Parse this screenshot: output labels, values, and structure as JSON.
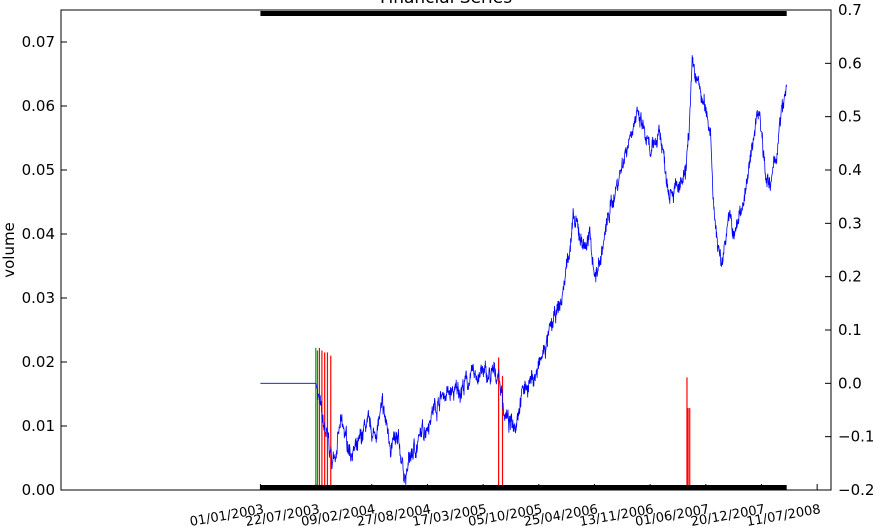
{
  "chart_data": {
    "type": "line",
    "title": "Financial Series",
    "ylabel_left": "volume",
    "ylabel_right": "",
    "left_axis": {
      "ylim": [
        0.0,
        0.075
      ],
      "ticks": [
        "0.00",
        "0.01",
        "0.02",
        "0.03",
        "0.04",
        "0.05",
        "0.06",
        "0.07"
      ]
    },
    "right_axis": {
      "ylim": [
        -0.2,
        0.7
      ],
      "ticks": [
        "−0.2",
        "−0.1",
        "0.0",
        "0.1",
        "0.2",
        "0.3",
        "0.4",
        "0.5",
        "0.6",
        "0.7"
      ]
    },
    "x_tick_labels": [
      "01/01/2003",
      "22/07/2003",
      "09/02/2004",
      "27/08/2004",
      "17/03/2005",
      "05/10/2005",
      "25/04/2006",
      "13/11/2006",
      "01/06/2007",
      "20/12/2007",
      "11/07/2008"
    ],
    "x_range_days": [
      -720,
      2060
    ],
    "series": [
      {
        "color": "#0000ff",
        "axis": "right",
        "anchors": [
          [
            0,
            0.0
          ],
          [
            200,
            0.0
          ],
          [
            210,
            -0.02
          ],
          [
            225,
            -0.08
          ],
          [
            240,
            -0.1
          ],
          [
            260,
            -0.15
          ],
          [
            290,
            -0.08
          ],
          [
            320,
            -0.12
          ],
          [
            350,
            -0.13
          ],
          [
            380,
            -0.08
          ],
          [
            410,
            -0.1
          ],
          [
            440,
            -0.05
          ],
          [
            470,
            -0.11
          ],
          [
            500,
            -0.12
          ],
          [
            525,
            -0.18
          ],
          [
            540,
            -0.14
          ],
          [
            580,
            -0.1
          ],
          [
            620,
            -0.05
          ],
          [
            660,
            -0.02
          ],
          [
            700,
            -0.02
          ],
          [
            740,
            0.0
          ],
          [
            790,
            0.02
          ],
          [
            830,
            0.01
          ],
          [
            860,
            0.02
          ],
          [
            880,
            -0.05
          ],
          [
            900,
            -0.08
          ],
          [
            920,
            -0.07
          ],
          [
            940,
            -0.02
          ],
          [
            965,
            0.0
          ],
          [
            1000,
            0.02
          ],
          [
            1050,
            0.1
          ],
          [
            1090,
            0.16
          ],
          [
            1110,
            0.24
          ],
          [
            1130,
            0.3
          ],
          [
            1170,
            0.26
          ],
          [
            1190,
            0.27
          ],
          [
            1210,
            0.2
          ],
          [
            1230,
            0.24
          ],
          [
            1260,
            0.32
          ],
          [
            1290,
            0.38
          ],
          [
            1320,
            0.44
          ],
          [
            1350,
            0.5
          ],
          [
            1380,
            0.48
          ],
          [
            1410,
            0.42
          ],
          [
            1440,
            0.48
          ],
          [
            1470,
            0.38
          ],
          [
            1510,
            0.36
          ],
          [
            1535,
            0.38
          ],
          [
            1550,
            0.5
          ],
          [
            1560,
            0.59
          ],
          [
            1580,
            0.56
          ],
          [
            1600,
            0.52
          ],
          [
            1625,
            0.48
          ],
          [
            1640,
            0.3
          ],
          [
            1665,
            0.22
          ],
          [
            1690,
            0.32
          ],
          [
            1710,
            0.27
          ],
          [
            1740,
            0.34
          ],
          [
            1760,
            0.38
          ],
          [
            1790,
            0.5
          ],
          [
            1800,
            0.52
          ],
          [
            1825,
            0.4
          ],
          [
            1840,
            0.36
          ],
          [
            1860,
            0.42
          ],
          [
            1880,
            0.5
          ],
          [
            1900,
            0.55
          ]
        ]
      }
    ],
    "volume_bars": [
      {
        "day": 200,
        "volume": 0.0222,
        "color": "#00a000"
      },
      {
        "day": 206,
        "volume": 0.0218,
        "color": "#00a000"
      },
      {
        "day": 213,
        "volume": 0.0222,
        "color": "#ff0000"
      },
      {
        "day": 222,
        "volume": 0.0218,
        "color": "#ff0000"
      },
      {
        "day": 232,
        "volume": 0.0215,
        "color": "#ff0000"
      },
      {
        "day": 242,
        "volume": 0.0215,
        "color": "#ff0000"
      },
      {
        "day": 254,
        "volume": 0.021,
        "color": "#ff0000"
      },
      {
        "day": 860,
        "volume": 0.0207,
        "color": "#ff0000"
      },
      {
        "day": 874,
        "volume": 0.0178,
        "color": "#ff0000"
      },
      {
        "day": 1540,
        "volume": 0.0176,
        "color": "#ff0000"
      },
      {
        "day": 1544,
        "volume": 0.0128,
        "color": "#ff0000"
      },
      {
        "day": 1550,
        "volume": 0.0128,
        "color": "#ff0000"
      }
    ],
    "grid": false,
    "legend": "none"
  }
}
